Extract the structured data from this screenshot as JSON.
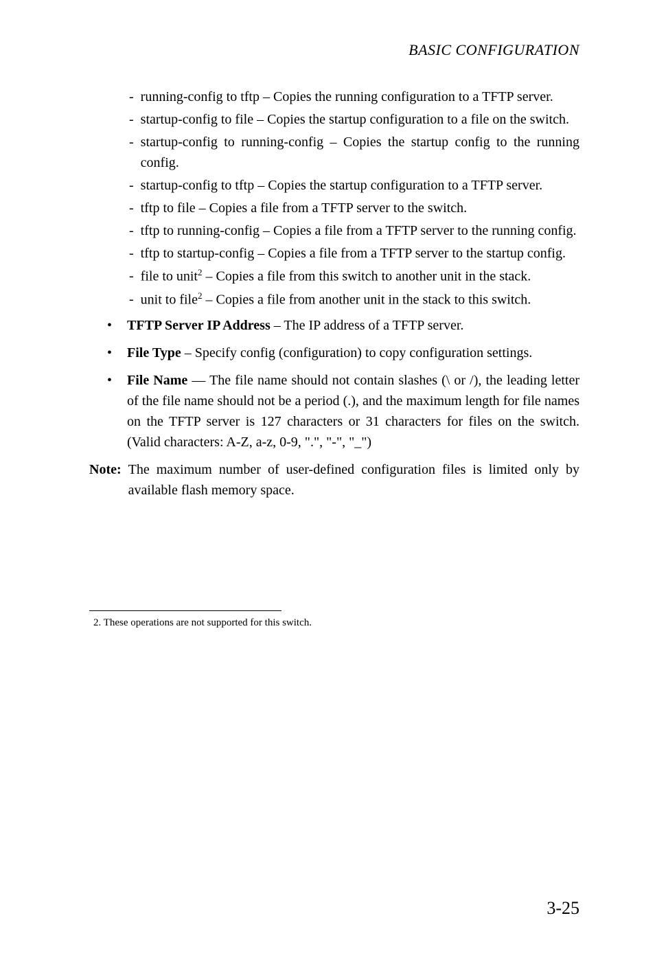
{
  "header": "BASIC CONFIGURATION",
  "subItems": [
    {
      "text": "running-config to tftp – Copies the running configuration to a TFTP server."
    },
    {
      "text": "startup-config to file – Copies the startup configuration to a file on the switch."
    },
    {
      "text": "startup-config to running-config – Copies the startup config to the running config."
    },
    {
      "text": "startup-config to tftp – Copies the startup configuration to a TFTP server."
    },
    {
      "text": "tftp to file – Copies a file from a TFTP server to the switch."
    },
    {
      "text": "tftp to running-config – Copies a file from a TFTP server to the running config."
    },
    {
      "text": "tftp to startup-config – Copies a file from a TFTP server to the startup config."
    },
    {
      "pre": "file to unit",
      "sup": "2",
      "post": " – Copies a file from this switch to another unit in the stack."
    },
    {
      "pre": "unit to file",
      "sup": "2",
      "post": " – Copies a file from another unit in the stack to this switch."
    }
  ],
  "mainItems": [
    {
      "bold": "TFTP Server IP Address",
      "rest": " – The IP address of a TFTP server."
    },
    {
      "bold": "File Type",
      "rest": " – Specify config (configuration) to copy configuration settings."
    },
    {
      "bold": "File Name",
      "rest": " — The file name should not contain slashes (\\ or /), the leading letter of the file name should not be a period (.), and the maximum length for file names on the TFTP server is 127 characters or 31 characters for files on the switch. (Valid characters: A-Z, a-z, 0-9, \".\", \"-\", \"_\")"
    }
  ],
  "noteLabel": "Note:",
  "noteText": "The maximum number of user-defined configuration files is limited only by available flash memory space.",
  "footnote": "2. These operations are not supported for this switch.",
  "pageNumber": "3-25"
}
